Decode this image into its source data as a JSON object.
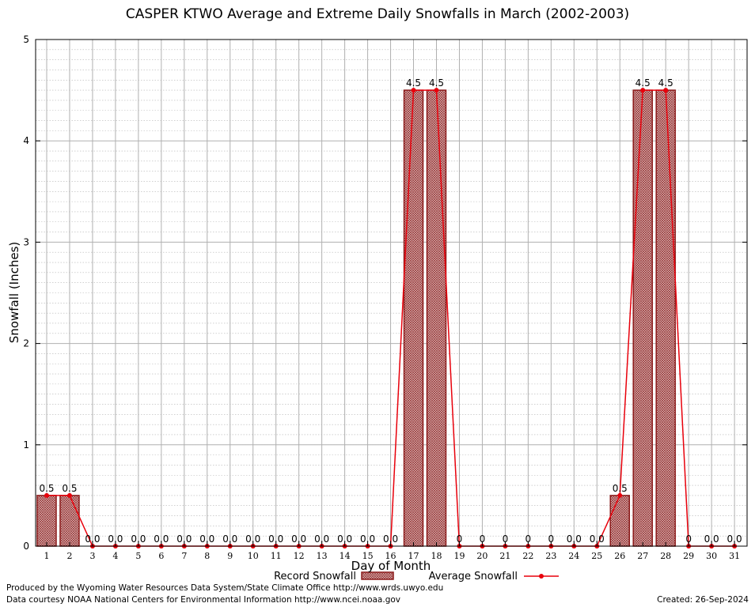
{
  "chart_data": {
    "type": "bar",
    "title": "CASPER KTWO Average and Extreme Daily Snowfalls in March (2002-2003)",
    "xlabel": "Day of Month",
    "ylabel": "Snowfall (Inches)",
    "ylim": [
      0,
      5
    ],
    "yticks": [
      "0",
      "1",
      "2",
      "3",
      "4",
      "5"
    ],
    "grid": true,
    "legend_position": "bottom",
    "categories": [
      "1",
      "2",
      "3",
      "4",
      "5",
      "6",
      "7",
      "8",
      "9",
      "10",
      "11",
      "12",
      "13",
      "14",
      "15",
      "16",
      "17",
      "18",
      "19",
      "20",
      "21",
      "22",
      "23",
      "24",
      "25",
      "26",
      "27",
      "28",
      "29",
      "30",
      "31"
    ],
    "series": [
      {
        "name": "Record Snowfall",
        "kind": "bar",
        "color": "#8b1a1a",
        "values": [
          0.5,
          0.5,
          null,
          null,
          null,
          null,
          null,
          null,
          null,
          null,
          null,
          null,
          null,
          null,
          null,
          null,
          4.5,
          4.5,
          null,
          null,
          null,
          null,
          null,
          null,
          null,
          0.5,
          4.5,
          4.5,
          null,
          null,
          null
        ]
      },
      {
        "name": "Average Snowfall",
        "kind": "line",
        "color": "#e8000b",
        "values": [
          0.5,
          0.5,
          0,
          0,
          0,
          0,
          0,
          0,
          0,
          0,
          0,
          0,
          0,
          0,
          0,
          0,
          4.5,
          4.5,
          0,
          0,
          0,
          0,
          0,
          0,
          0,
          0.5,
          4.5,
          4.5,
          0,
          0,
          0
        ]
      }
    ],
    "data_labels": [
      "0.5",
      "0.5",
      "0.0",
      "0.0",
      "0.0",
      "0.0",
      "0.0",
      "0.0",
      "0.0",
      "0.0",
      "0.0",
      "0.0",
      "0.0",
      "0.0",
      "0.0",
      "0.0",
      "4.5",
      "4.5",
      "0",
      "0",
      "0",
      "0",
      "0",
      "0.0",
      "0.0",
      "0.5",
      "4.5",
      "4.5",
      "0",
      "0.0",
      "0.0"
    ]
  },
  "footer": {
    "produced_by": "Produced by the Wyoming Water Resources Data System/State Climate Office http://www.wrds.uwyo.edu",
    "data_courtesy": "Data courtesy NOAA National Centers for Environmental Information http://www.ncei.noaa.gov",
    "created": "Created:  26-Sep-2024"
  }
}
